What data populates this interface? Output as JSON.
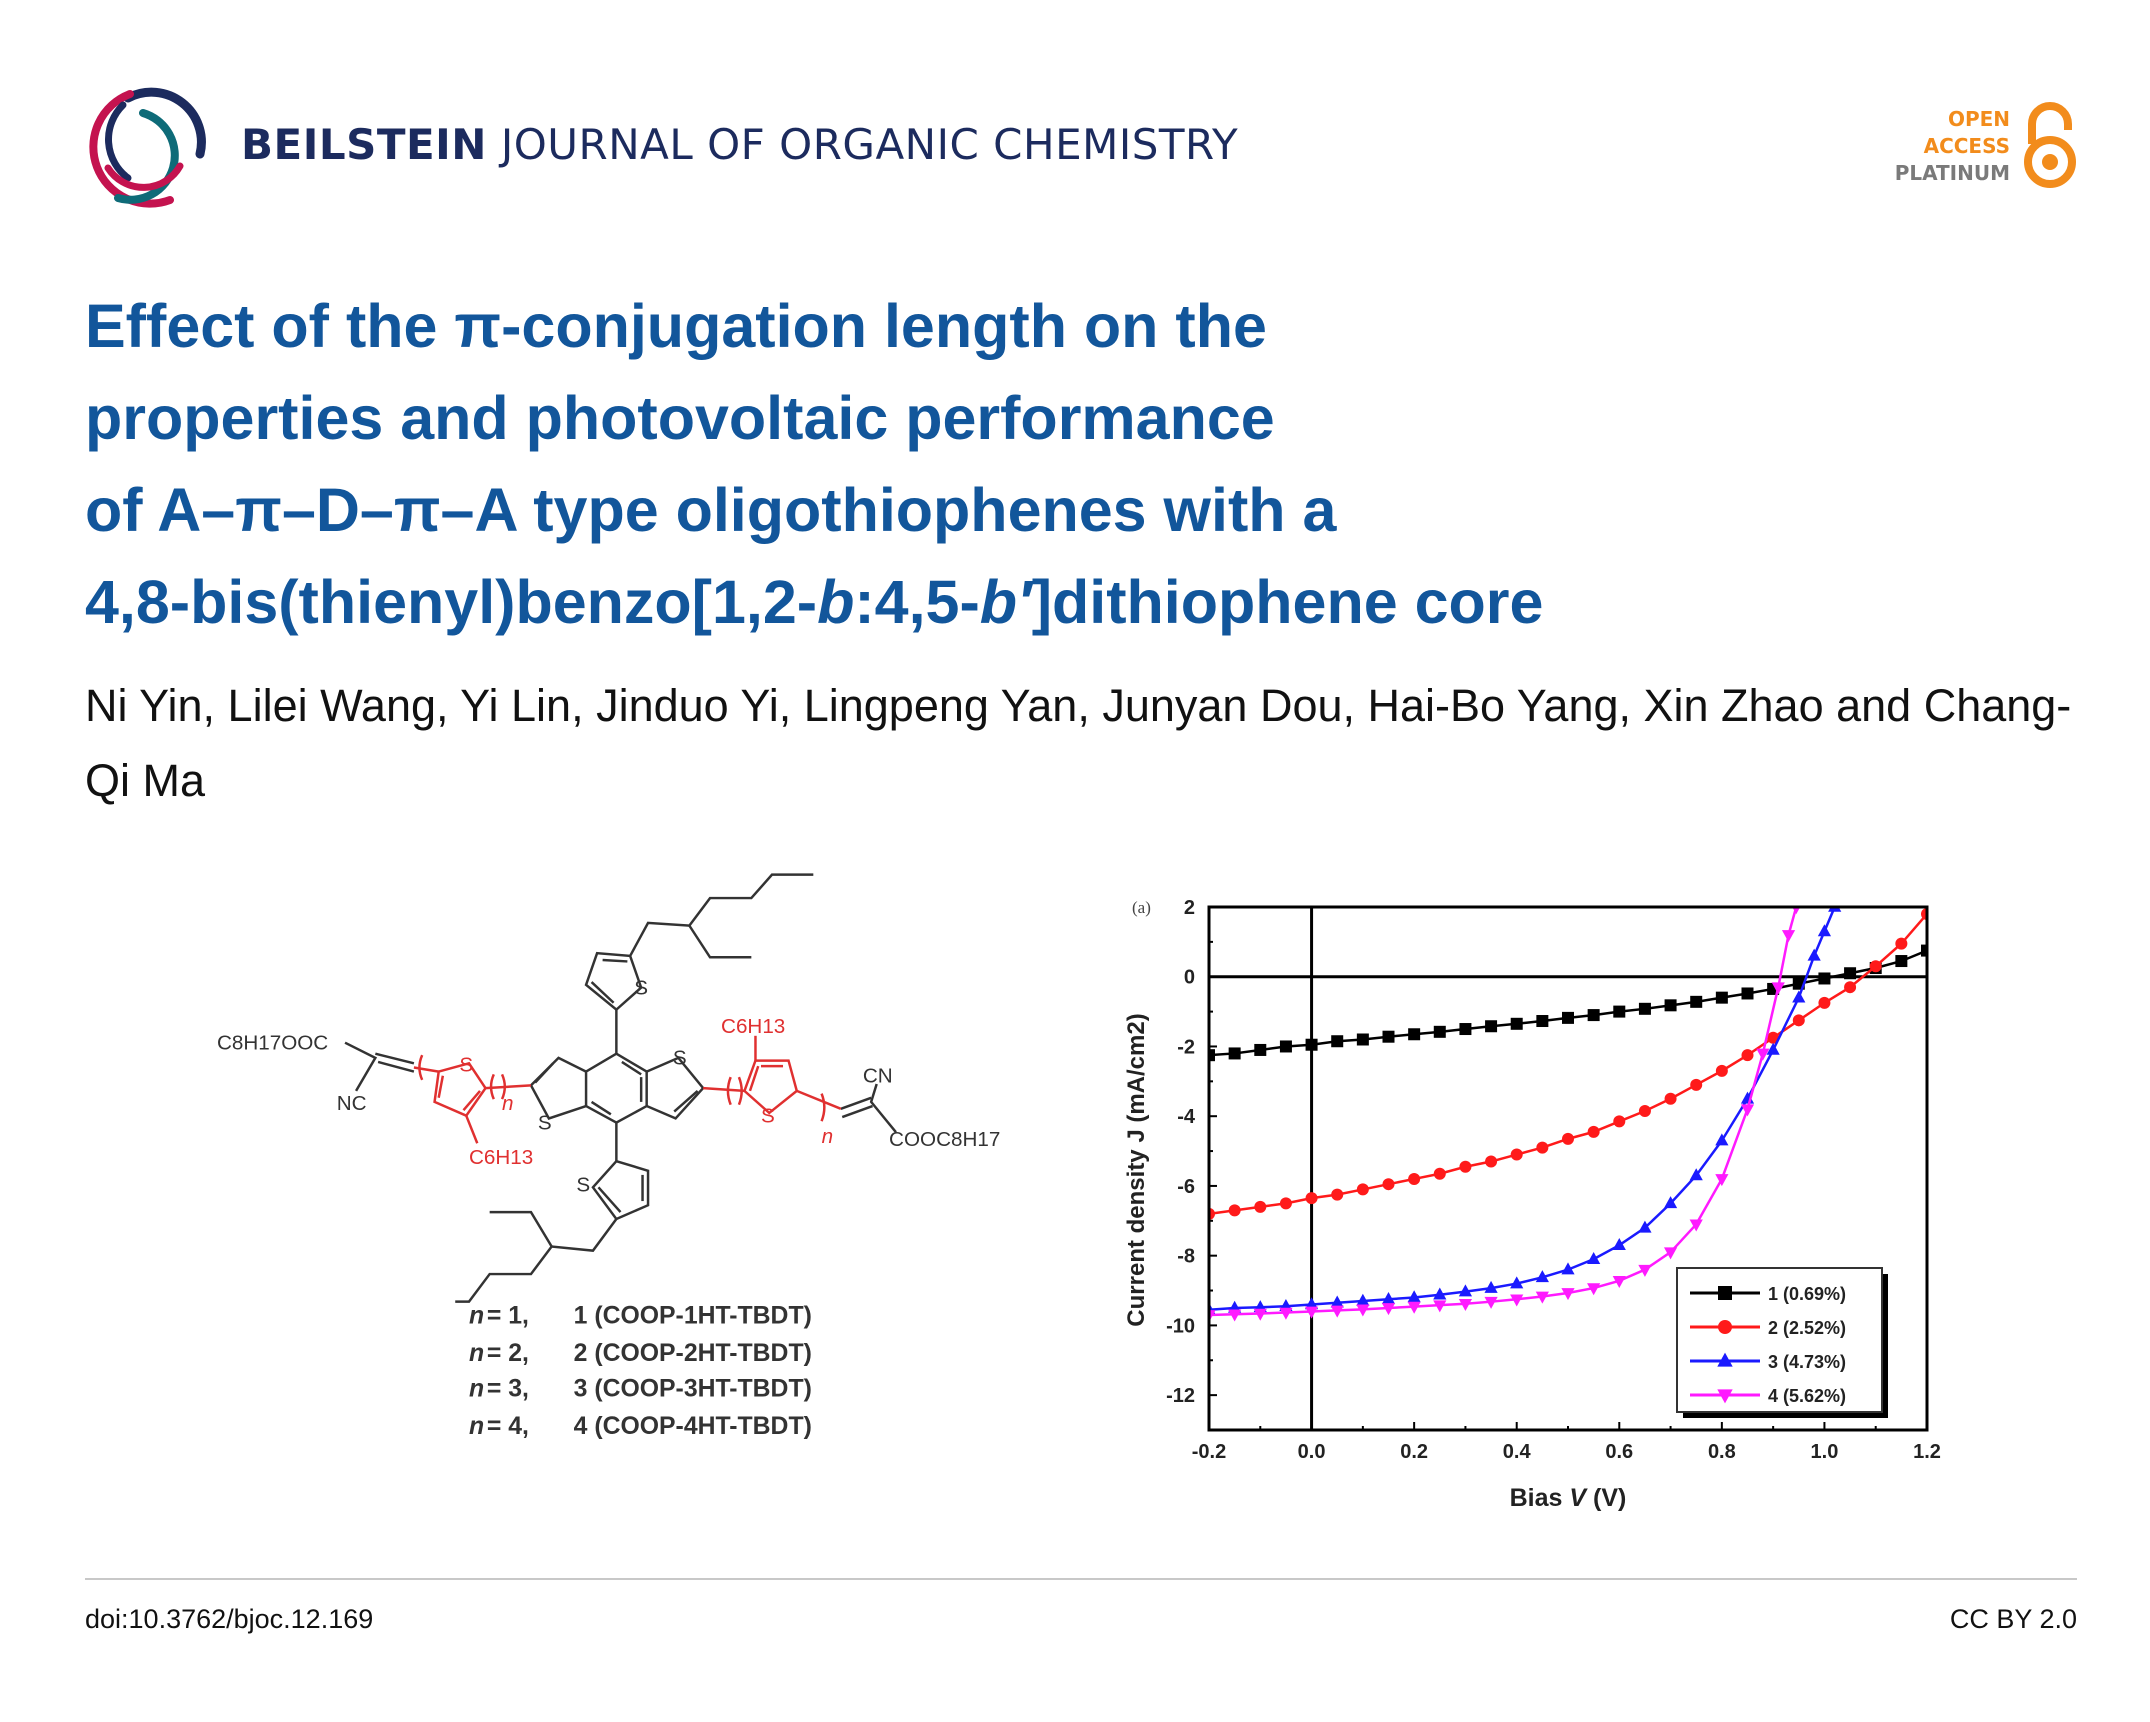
{
  "header": {
    "journal_brand": "BEILSTEIN",
    "journal_rest": "JOURNAL OF ORGANIC CHEMISTRY",
    "badge": {
      "line1": "OPEN",
      "line2": "ACCESS",
      "line3": "PLATINUM"
    },
    "colors": {
      "navy": "#1c2b5e",
      "crimson": "#c4134f",
      "teal": "#0e6b78",
      "orange": "#f28c1c"
    }
  },
  "article": {
    "title_lines": [
      "Effect of the π-conjugation length on the",
      "properties and photovoltaic performance",
      "of A–π–D–π–A type oligothiophenes with a"
    ],
    "title_line4": {
      "a": "4,8-bis(thienyl)benzo[1,2-",
      "b1": "b",
      "c": ":4,5-",
      "b2": "b′",
      "d": "]dithiophene core"
    },
    "authors": "Ni Yin, Lilei Wang, Yi Lin, Jinduo Yi, Lingpeng Yan, Junyan Dou, Hai-Bo Yang, Xin Zhao and Chang-Qi Ma",
    "title_color": "#12569b"
  },
  "structure": {
    "labels": {
      "left_ester": "C8H17OOC",
      "left_cn": "NC",
      "right_cn": "CN",
      "right_ester": "COOC8H17",
      "hexyl": "C6H13",
      "sulfur": "S",
      "repeat": "n"
    },
    "compounds": [
      {
        "n": "n",
        "eq": "= 1,",
        "name": "1 (COOP-1HT-TBDT)"
      },
      {
        "n": "n",
        "eq": "= 2,",
        "name": "2 (COOP-2HT-TBDT)"
      },
      {
        "n": "n",
        "eq": "= 3,",
        "name": "3 (COOP-3HT-TBDT)"
      },
      {
        "n": "n",
        "eq": "= 4,",
        "name": "4 (COOP-4HT-TBDT)"
      }
    ]
  },
  "chart_data": {
    "type": "line",
    "panel_label": "(a)",
    "xlabel": "Bias V (V)",
    "ylabel": "Current density J (mA/cm2)",
    "xlim": [
      -0.2,
      1.2
    ],
    "ylim": [
      -13,
      2
    ],
    "xticks": [
      "-0.2",
      "0.0",
      "0.2",
      "0.4",
      "0.6",
      "0.8",
      "1.0",
      "1.2"
    ],
    "yticks": [
      "2",
      "0",
      "-2",
      "-4",
      "-6",
      "-8",
      "-10",
      "-12"
    ],
    "legend_position": "bottom-right",
    "series": [
      {
        "name": "1 (0.69%)",
        "color": "#000000",
        "marker": "square",
        "points": [
          [
            -0.2,
            -2.25
          ],
          [
            -0.15,
            -2.2
          ],
          [
            -0.1,
            -2.1
          ],
          [
            -0.05,
            -2.0
          ],
          [
            0,
            -1.95
          ],
          [
            0.05,
            -1.85
          ],
          [
            0.1,
            -1.8
          ],
          [
            0.15,
            -1.72
          ],
          [
            0.2,
            -1.65
          ],
          [
            0.25,
            -1.58
          ],
          [
            0.3,
            -1.5
          ],
          [
            0.35,
            -1.42
          ],
          [
            0.4,
            -1.35
          ],
          [
            0.45,
            -1.27
          ],
          [
            0.5,
            -1.18
          ],
          [
            0.55,
            -1.1
          ],
          [
            0.6,
            -1.0
          ],
          [
            0.65,
            -0.92
          ],
          [
            0.7,
            -0.82
          ],
          [
            0.75,
            -0.72
          ],
          [
            0.8,
            -0.6
          ],
          [
            0.85,
            -0.48
          ],
          [
            0.9,
            -0.35
          ],
          [
            0.95,
            -0.2
          ],
          [
            1.0,
            -0.05
          ],
          [
            1.05,
            0.1
          ],
          [
            1.1,
            0.25
          ],
          [
            1.15,
            0.45
          ],
          [
            1.2,
            0.75
          ]
        ]
      },
      {
        "name": "2 (2.52%)",
        "color": "#ff1a1a",
        "marker": "circle",
        "points": [
          [
            -0.2,
            -6.8
          ],
          [
            -0.15,
            -6.7
          ],
          [
            -0.1,
            -6.6
          ],
          [
            -0.05,
            -6.5
          ],
          [
            0,
            -6.35
          ],
          [
            0.05,
            -6.25
          ],
          [
            0.1,
            -6.1
          ],
          [
            0.15,
            -5.95
          ],
          [
            0.2,
            -5.8
          ],
          [
            0.25,
            -5.65
          ],
          [
            0.3,
            -5.45
          ],
          [
            0.35,
            -5.3
          ],
          [
            0.4,
            -5.1
          ],
          [
            0.45,
            -4.9
          ],
          [
            0.5,
            -4.65
          ],
          [
            0.55,
            -4.45
          ],
          [
            0.6,
            -4.15
          ],
          [
            0.65,
            -3.85
          ],
          [
            0.7,
            -3.5
          ],
          [
            0.75,
            -3.1
          ],
          [
            0.8,
            -2.7
          ],
          [
            0.85,
            -2.25
          ],
          [
            0.9,
            -1.75
          ],
          [
            0.95,
            -1.25
          ],
          [
            1.0,
            -0.75
          ],
          [
            1.05,
            -0.3
          ],
          [
            1.1,
            0.3
          ],
          [
            1.15,
            0.95
          ],
          [
            1.2,
            1.8
          ]
        ]
      },
      {
        "name": "3 (4.73%)",
        "color": "#1a1aff",
        "marker": "triangle-up",
        "points": [
          [
            -0.2,
            -9.55
          ],
          [
            -0.15,
            -9.5
          ],
          [
            -0.1,
            -9.48
          ],
          [
            -0.05,
            -9.45
          ],
          [
            0,
            -9.4
          ],
          [
            0.05,
            -9.35
          ],
          [
            0.1,
            -9.3
          ],
          [
            0.15,
            -9.25
          ],
          [
            0.2,
            -9.2
          ],
          [
            0.25,
            -9.12
          ],
          [
            0.3,
            -9.03
          ],
          [
            0.35,
            -8.93
          ],
          [
            0.4,
            -8.8
          ],
          [
            0.45,
            -8.62
          ],
          [
            0.5,
            -8.4
          ],
          [
            0.55,
            -8.1
          ],
          [
            0.6,
            -7.7
          ],
          [
            0.65,
            -7.2
          ],
          [
            0.7,
            -6.5
          ],
          [
            0.75,
            -5.7
          ],
          [
            0.8,
            -4.7
          ],
          [
            0.85,
            -3.5
          ],
          [
            0.9,
            -2.1
          ],
          [
            0.95,
            -0.6
          ],
          [
            0.98,
            0.6
          ],
          [
            1.0,
            1.3
          ],
          [
            1.02,
            2.0
          ]
        ]
      },
      {
        "name": "4 (5.62%)",
        "color": "#ff1aff",
        "marker": "triangle-down",
        "points": [
          [
            -0.2,
            -9.7
          ],
          [
            -0.15,
            -9.68
          ],
          [
            -0.1,
            -9.66
          ],
          [
            -0.05,
            -9.63
          ],
          [
            0,
            -9.6
          ],
          [
            0.05,
            -9.57
          ],
          [
            0.1,
            -9.54
          ],
          [
            0.15,
            -9.5
          ],
          [
            0.2,
            -9.46
          ],
          [
            0.25,
            -9.42
          ],
          [
            0.3,
            -9.38
          ],
          [
            0.35,
            -9.32
          ],
          [
            0.4,
            -9.25
          ],
          [
            0.45,
            -9.17
          ],
          [
            0.5,
            -9.07
          ],
          [
            0.55,
            -8.93
          ],
          [
            0.6,
            -8.72
          ],
          [
            0.65,
            -8.4
          ],
          [
            0.7,
            -7.9
          ],
          [
            0.75,
            -7.1
          ],
          [
            0.8,
            -5.8
          ],
          [
            0.85,
            -3.8
          ],
          [
            0.88,
            -2.2
          ],
          [
            0.91,
            -0.3
          ],
          [
            0.93,
            1.2
          ],
          [
            0.945,
            2.0
          ]
        ]
      }
    ]
  },
  "footer": {
    "doi": "doi:10.3762/bjoc.12.169",
    "license": "CC BY 2.0"
  }
}
